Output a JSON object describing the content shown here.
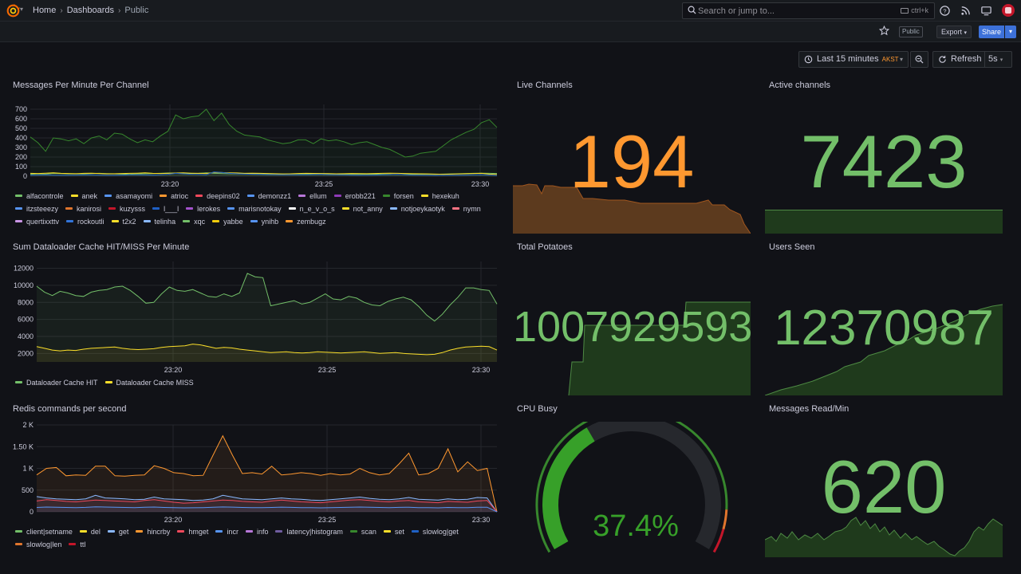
{
  "header": {
    "breadcrumb": [
      "Home",
      "Dashboards",
      "Public"
    ],
    "search_placeholder": "Search or jump to...",
    "search_shortcut": "ctrl+k",
    "public_badge": "Public",
    "export_label": "Export",
    "share_label": "Share"
  },
  "timepicker": {
    "range": "Last 15 minutes",
    "timezone": "AKST",
    "refresh_label": "Refresh",
    "interval": "5s"
  },
  "colors": {
    "green": "#73bf69",
    "yellow": "#fade2a",
    "blue": "#5794f2",
    "orange": "#ff9830",
    "red": "#f2495c",
    "purple": "#b877d9",
    "gauge_green": "#37872d"
  },
  "panels": {
    "messages_per_minute": {
      "title": "Messages Per Minute Per Channel",
      "legend": [
        {
          "name": "alfacontrole",
          "color": "#73bf69"
        },
        {
          "name": "anek",
          "color": "#fade2a"
        },
        {
          "name": "asamayomi",
          "color": "#5794f2"
        },
        {
          "name": "atrioc",
          "color": "#ff9830"
        },
        {
          "name": "deepins02",
          "color": "#f2495c"
        },
        {
          "name": "demonzz1",
          "color": "#5794f2"
        },
        {
          "name": "ellum",
          "color": "#b877d9"
        },
        {
          "name": "erobb221",
          "color": "#8f3bb8"
        },
        {
          "name": "forsen",
          "color": "#37872d"
        },
        {
          "name": "hexekuh",
          "color": "#fade2a"
        },
        {
          "name": "itzsteeezy",
          "color": "#5794f2"
        },
        {
          "name": "kanirosi",
          "color": "#e0752d"
        },
        {
          "name": "kuzysss",
          "color": "#c4162a"
        },
        {
          "name": "l___l",
          "color": "#1f60c4"
        },
        {
          "name": "lerokes",
          "color": "#a352cc"
        },
        {
          "name": "marisnotokay",
          "color": "#5794f2"
        },
        {
          "name": "n_e_v_o_s",
          "color": "#ffffff"
        },
        {
          "name": "not_anny",
          "color": "#fade2a"
        },
        {
          "name": "notjoeykaotyk",
          "color": "#8ab8ff"
        },
        {
          "name": "nymn",
          "color": "#ff7383"
        },
        {
          "name": "quertixxttv",
          "color": "#ca95e5"
        },
        {
          "name": "rockoutli",
          "color": "#3274d9"
        },
        {
          "name": "t2x2",
          "color": "#fade2a"
        },
        {
          "name": "telinha",
          "color": "#8ab8ff"
        },
        {
          "name": "xqc",
          "color": "#73bf69"
        },
        {
          "name": "yabbe",
          "color": "#f2cc0c"
        },
        {
          "name": "ynihb",
          "color": "#5794f2"
        },
        {
          "name": "zembugz",
          "color": "#ff9830"
        }
      ]
    },
    "live_channels": {
      "title": "Live Channels",
      "value": "194"
    },
    "active_channels": {
      "title": "Active channels",
      "value": "7423"
    },
    "dataloader": {
      "title": "Sum Dataloader Cache HIT/MISS Per Minute",
      "legend": [
        {
          "name": "Dataloader Cache HIT",
          "color": "#73bf69"
        },
        {
          "name": "Dataloader Cache MISS",
          "color": "#fade2a"
        }
      ]
    },
    "total_potatoes": {
      "title": "Total Potatoes",
      "value": "1007929593"
    },
    "users_seen": {
      "title": "Users Seen",
      "value": "12370987"
    },
    "redis": {
      "title": "Redis commands per second",
      "legend": [
        {
          "name": "client|setname",
          "color": "#73bf69"
        },
        {
          "name": "del",
          "color": "#fade2a"
        },
        {
          "name": "get",
          "color": "#8ab8ff"
        },
        {
          "name": "hincrby",
          "color": "#ff9830"
        },
        {
          "name": "hmget",
          "color": "#f2495c"
        },
        {
          "name": "incr",
          "color": "#5794f2"
        },
        {
          "name": "info",
          "color": "#b877d9"
        },
        {
          "name": "latency|histogram",
          "color": "#705da0"
        },
        {
          "name": "scan",
          "color": "#37872d"
        },
        {
          "name": "set",
          "color": "#fade2a"
        },
        {
          "name": "slowlog|get",
          "color": "#1f60c4"
        },
        {
          "name": "slowlog|len",
          "color": "#e0752d"
        },
        {
          "name": "ttl",
          "color": "#c4162a"
        }
      ]
    },
    "cpu_busy": {
      "title": "CPU Busy",
      "value": "37.4%",
      "percent": 37.4
    },
    "messages_read": {
      "title": "Messages Read/Min",
      "value": "620"
    }
  },
  "chart_data": [
    {
      "type": "line",
      "title": "Messages Per Minute Per Channel",
      "x_ticks": [
        "23:20",
        "23:25",
        "23:30"
      ],
      "y_ticks": [
        "0",
        "100",
        "200",
        "300",
        "400",
        "500",
        "600",
        "700"
      ],
      "ylim": [
        0,
        750
      ],
      "series": [
        {
          "name": "forsen",
          "values": [
            410,
            350,
            260,
            400,
            390,
            370,
            390,
            340,
            400,
            420,
            380,
            450,
            440,
            390,
            350,
            380,
            360,
            420,
            470,
            640,
            600,
            620,
            630,
            700,
            580,
            660,
            540,
            470,
            430,
            420,
            410,
            380,
            360,
            340,
            350,
            380,
            380,
            340,
            390,
            370,
            380,
            360,
            330,
            350,
            360,
            330,
            300,
            280,
            240,
            200,
            210,
            240,
            250,
            260,
            320,
            380,
            420,
            460,
            490,
            560,
            590,
            510
          ]
        },
        {
          "name": "xqc",
          "values": [
            20,
            25,
            22,
            30,
            28,
            25,
            26,
            24,
            28,
            30,
            27,
            25,
            22,
            20,
            24,
            26,
            28,
            30,
            33,
            32,
            30,
            28,
            30,
            35,
            30,
            28,
            26,
            24,
            25,
            26,
            24,
            22,
            20,
            22,
            25,
            24,
            22,
            20,
            21,
            23,
            22,
            20,
            18,
            20,
            22,
            21,
            20,
            18,
            17,
            19,
            20,
            22,
            21,
            20,
            22,
            24,
            26,
            28,
            30,
            32,
            30,
            28
          ]
        },
        {
          "name": "not_anny",
          "values": [
            30,
            28,
            32,
            35,
            30,
            28,
            26,
            30,
            32,
            28,
            25,
            26,
            28,
            30,
            32,
            35,
            30,
            28,
            30,
            33,
            35,
            32,
            30,
            28,
            40,
            38,
            36,
            34,
            30,
            32,
            30,
            28,
            26,
            24,
            25,
            28,
            30,
            29,
            28,
            27,
            25,
            26,
            28,
            27,
            26,
            28,
            30,
            32,
            30,
            28,
            26,
            25,
            24,
            22,
            20,
            22,
            24,
            26,
            28,
            30,
            22,
            18
          ]
        },
        {
          "name": "l___l",
          "values": [
            10,
            12,
            14,
            12,
            10,
            11,
            12,
            13,
            14,
            12,
            11,
            10,
            12,
            14,
            15,
            13,
            12,
            14,
            20,
            30,
            25,
            20,
            18,
            16,
            45,
            40,
            30,
            25,
            22,
            20,
            18,
            17,
            16,
            15,
            14,
            15,
            16,
            17,
            18,
            16,
            14,
            13,
            12,
            11,
            10,
            12,
            14,
            16,
            18,
            15,
            12,
            10,
            9,
            8,
            9,
            10,
            11,
            12,
            14,
            16,
            12,
            8
          ]
        }
      ]
    },
    {
      "type": "line",
      "title": "Sum Dataloader Cache HIT/MISS Per Minute",
      "x_ticks": [
        "23:20",
        "23:25",
        "23:30"
      ],
      "y_ticks": [
        "2000",
        "4000",
        "6000",
        "8000",
        "10000",
        "12000"
      ],
      "ylim": [
        1000,
        12800
      ],
      "series": [
        {
          "name": "Dataloader Cache HIT",
          "values": [
            9900,
            9200,
            8800,
            9300,
            9100,
            8800,
            8700,
            9200,
            9400,
            9500,
            9800,
            9900,
            9400,
            8700,
            7900,
            8000,
            9000,
            9800,
            9400,
            9300,
            9500,
            9100,
            8700,
            8600,
            9000,
            8700,
            9100,
            11400,
            11000,
            10900,
            7600,
            7800,
            8000,
            8200,
            7800,
            8000,
            8500,
            9000,
            8400,
            8300,
            8700,
            8500,
            8000,
            7700,
            7600,
            8100,
            8400,
            8600,
            8300,
            7500,
            6500,
            5800,
            6600,
            7700,
            8600,
            9700,
            9700,
            9500,
            9400,
            7800
          ]
        },
        {
          "name": "Dataloader Cache MISS",
          "values": [
            2800,
            2600,
            2400,
            2300,
            2400,
            2350,
            2500,
            2600,
            2650,
            2700,
            2750,
            2600,
            2500,
            2450,
            2500,
            2550,
            2700,
            2800,
            2850,
            2900,
            3100,
            3000,
            2800,
            2600,
            2700,
            2650,
            2500,
            2400,
            2300,
            2200,
            2100,
            2150,
            2200,
            2100,
            2050,
            2100,
            2200,
            2150,
            2100,
            2050,
            2100,
            2150,
            2200,
            2100,
            2000,
            2050,
            2100,
            2000,
            1950,
            1900,
            1850,
            1900,
            2100,
            2400,
            2600,
            2750,
            2800,
            2850,
            2800,
            2400
          ]
        }
      ]
    },
    {
      "type": "line",
      "title": "Redis commands per second",
      "x_ticks": [
        "23:20",
        "23:25",
        "23:30"
      ],
      "y_ticks": [
        "0",
        "500",
        "1 K",
        "1.50 K",
        "2 K"
      ],
      "ylim": [
        0,
        2000
      ],
      "series": [
        {
          "name": "hincrby",
          "values": [
            850,
            1000,
            1020,
            830,
            850,
            840,
            1050,
            1050,
            830,
            820,
            840,
            850,
            1060,
            1000,
            900,
            880,
            830,
            840,
            1300,
            1750,
            1300,
            880,
            900,
            870,
            1050,
            850,
            870,
            900,
            880,
            840,
            880,
            850,
            870,
            1000,
            900,
            850,
            880,
            1100,
            1350,
            850,
            880,
            1000,
            1450,
            920,
            1150,
            950,
            1000,
            0
          ]
        },
        {
          "name": "get",
          "values": [
            350,
            320,
            300,
            290,
            280,
            300,
            380,
            320,
            310,
            300,
            280,
            290,
            340,
            300,
            290,
            280,
            260,
            270,
            300,
            380,
            340,
            300,
            290,
            280,
            300,
            320,
            300,
            290,
            270,
            260,
            280,
            300,
            320,
            340,
            310,
            290,
            280,
            300,
            330,
            290,
            280,
            270,
            300,
            280,
            290,
            330,
            320,
            0
          ]
        },
        {
          "name": "hmget",
          "values": [
            250,
            280,
            260,
            240,
            230,
            250,
            270,
            260,
            250,
            240,
            230,
            260,
            280,
            250,
            220,
            200,
            210,
            230,
            250,
            270,
            260,
            240,
            230,
            220,
            250,
            270,
            250,
            230,
            220,
            210,
            230,
            250,
            270,
            280,
            260,
            240,
            230,
            250,
            260,
            230,
            220,
            210,
            240,
            230,
            220,
            250,
            260,
            0
          ]
        },
        {
          "name": "incr",
          "values": [
            100,
            110,
            105,
            100,
            98,
            102,
            115,
            110,
            105,
            100,
            98,
            104,
            110,
            100,
            95,
            92,
            94,
            98,
            104,
            112,
            108,
            100,
            98,
            96,
            100,
            108,
            102,
            98,
            95,
            92,
            96,
            100,
            106,
            110,
            104,
            100,
            98,
            102,
            106,
            98,
            95,
            92,
            100,
            98,
            96,
            104,
            106,
            0
          ]
        }
      ]
    }
  ]
}
